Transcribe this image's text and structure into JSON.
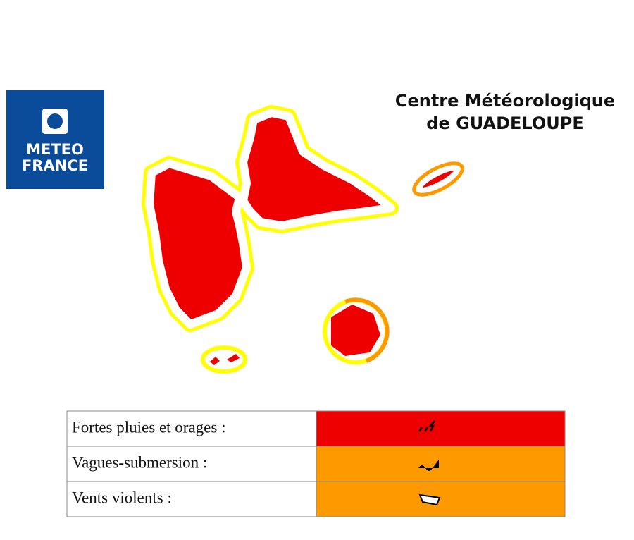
{
  "header": {
    "logo": [
      "METEO",
      "FRANCE"
    ],
    "title": [
      "Centre Météorologique",
      "de GUADELOUPE"
    ]
  },
  "table": {
    "rows": [
      {
        "label": "Fortes pluies et orages :",
        "color": "#ee0000"
      },
      {
        "label": "Vagues-submersion :",
        "color": "#ff9900"
      },
      {
        "label": "Vents violents :",
        "color": "#ff9900"
      }
    ]
  }
}
